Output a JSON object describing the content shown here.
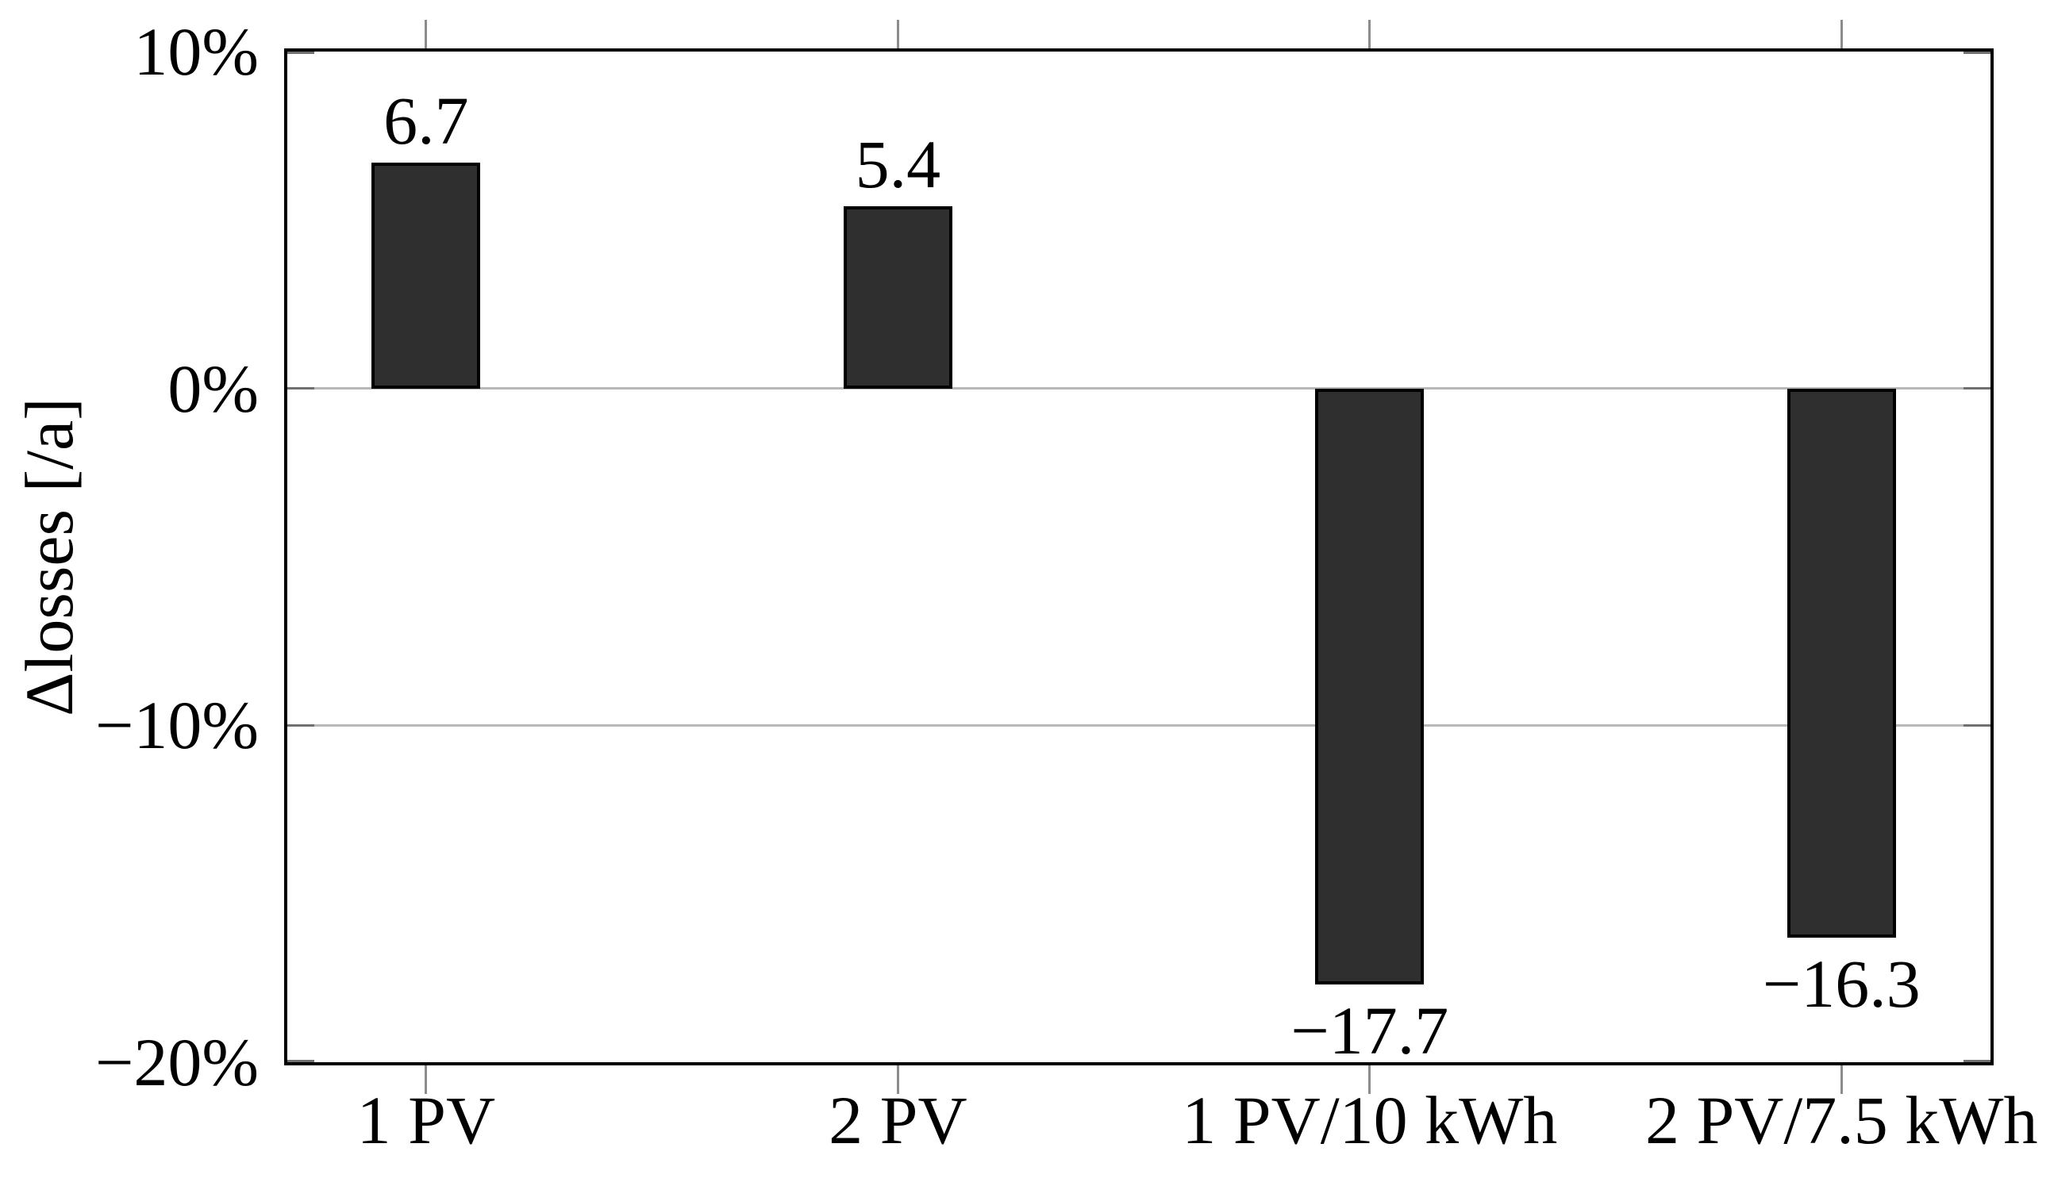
{
  "chart_data": {
    "type": "bar",
    "categories": [
      "1 PV",
      "2 PV",
      "1 PV/10 kWh",
      "2 PV/7.5 kWh"
    ],
    "values": [
      6.7,
      5.4,
      -17.7,
      -16.3
    ],
    "bar_labels": [
      "6.7",
      "5.4",
      "−17.7",
      "−16.3"
    ],
    "title": "",
    "xlabel": "",
    "ylabel": "Δlosses [/a]",
    "ylim": [
      -20,
      10
    ],
    "yticks": [
      10,
      0,
      -10,
      -20
    ],
    "ytick_labels": [
      "10%",
      "0%",
      "−10%",
      "−20%"
    ],
    "gridlines_at": [
      0,
      -10
    ],
    "grid": "horizontal",
    "legend_position": "none",
    "units": "percent",
    "colors": {
      "bar_fill": "#2f2f2f",
      "bar_border": "#000000",
      "frame": "#000000",
      "gridline": "#b8b8b8",
      "y_tick": "#707070",
      "x_tick": "#8c8c8c",
      "text": "#000000",
      "background": "#ffffff"
    }
  }
}
